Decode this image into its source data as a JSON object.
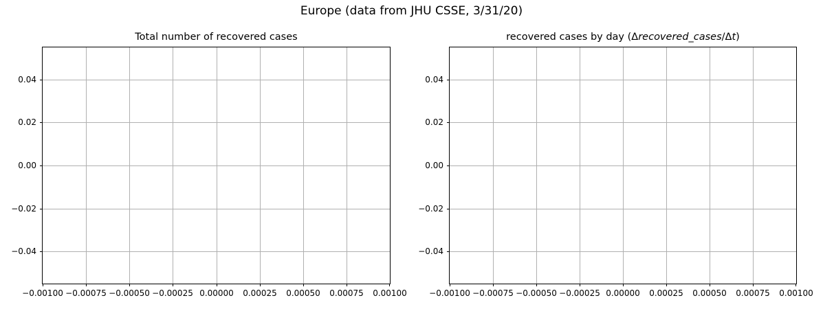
{
  "figure": {
    "suptitle": "Europe (data from JHU CSSE, 3/31/20)",
    "background_color": "#ffffff",
    "axes_face_color": "#ffffff",
    "spine_color": "#000000",
    "grid_color": "#b0b0b0",
    "text_color": "#000000"
  },
  "chart_data": [
    {
      "type": "line",
      "title": "Total number of recovered cases",
      "title_segments": [
        {
          "text": "Total number of recovered cases",
          "italic": false
        }
      ],
      "series": [],
      "note_visible_content": "empty axes, no data plotted",
      "xlim": [
        -0.001,
        0.001
      ],
      "ylim": [
        -0.055,
        0.055
      ],
      "xticks": [
        -0.001,
        -0.00075,
        -0.0005,
        -0.00025,
        0.0,
        0.00025,
        0.0005,
        0.00075,
        0.001
      ],
      "xtick_labels": [
        "−0.00100",
        "−0.00075",
        "−0.00050",
        "−0.00025",
        "0.00000",
        "0.00025",
        "0.00050",
        "0.00075",
        "0.00100"
      ],
      "yticks": [
        0.04,
        0.02,
        0.0,
        -0.02,
        -0.04
      ],
      "ytick_labels": [
        "0.04",
        "0.02",
        "0.00",
        "−0.02",
        "−0.04"
      ],
      "grid": true,
      "legend": null
    },
    {
      "type": "line",
      "title": "recovered cases by day (Δrecovered_cases/Δt)",
      "title_segments": [
        {
          "text": "recovered cases by day (",
          "italic": false
        },
        {
          "text": "Δ",
          "italic": false
        },
        {
          "text": "recovered_cases",
          "italic": true
        },
        {
          "text": "/",
          "italic": false
        },
        {
          "text": "Δ",
          "italic": false
        },
        {
          "text": "t",
          "italic": true
        },
        {
          "text": ")",
          "italic": false
        }
      ],
      "series": [],
      "note_visible_content": "empty axes, no data plotted",
      "xlim": [
        -0.001,
        0.001
      ],
      "ylim": [
        -0.055,
        0.055
      ],
      "xticks": [
        -0.001,
        -0.00075,
        -0.0005,
        -0.00025,
        0.0,
        0.00025,
        0.0005,
        0.00075,
        0.001
      ],
      "xtick_labels": [
        "−0.00100",
        "−0.00075",
        "−0.00050",
        "−0.00025",
        "0.00000",
        "0.00025",
        "0.00050",
        "0.00075",
        "0.00100"
      ],
      "yticks": [
        0.04,
        0.02,
        0.0,
        -0.02,
        -0.04
      ],
      "ytick_labels": [
        "0.04",
        "0.02",
        "0.00",
        "−0.02",
        "−0.04"
      ],
      "grid": true,
      "legend": null
    }
  ]
}
